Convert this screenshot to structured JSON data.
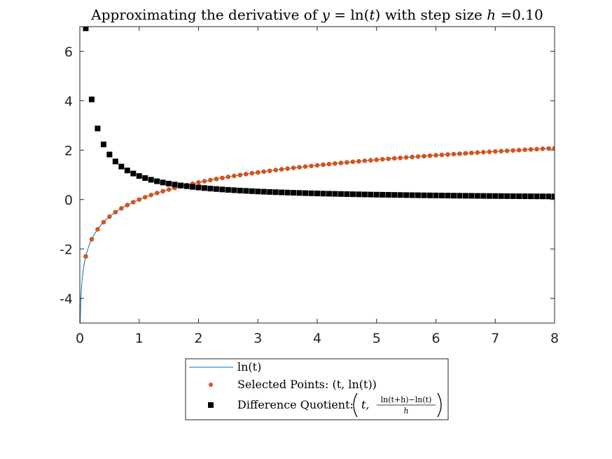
{
  "chart_data": {
    "type": "scatter",
    "title": "Approximating the derivative of y = ln(t) with step size h =0.10",
    "xlabel": "",
    "ylabel": "",
    "xlim": [
      0,
      8
    ],
    "ylim": [
      -5,
      7
    ],
    "x_ticks": [
      0,
      1,
      2,
      3,
      4,
      5,
      6,
      7,
      8
    ],
    "y_ticks": [
      -4,
      -2,
      0,
      2,
      4,
      6
    ],
    "x_tick_labels": [
      "0",
      "1",
      "2",
      "3",
      "4",
      "5",
      "6",
      "7",
      "8"
    ],
    "y_tick_labels": [
      "-4",
      "-2",
      "0",
      "2",
      "4",
      "6"
    ],
    "grid": false,
    "legend_position": "bottom-outside",
    "h": 0.1,
    "t_start": 0.1,
    "t_end": 8.0,
    "series": [
      {
        "name": "ln(t)",
        "kind": "line",
        "color": "#0072BD",
        "function": "ln(t)"
      },
      {
        "name": "Selected Points: (t, ln(t))",
        "kind": "points",
        "marker": "circle",
        "color": "#D95319",
        "function": "ln(t)"
      },
      {
        "name": "Difference Quotient: (t, (ln(t+h)−ln(t))/h)",
        "kind": "points",
        "marker": "square",
        "color": "#000000",
        "function": "(ln(t+h)-ln(t))/h"
      }
    ]
  },
  "title": {
    "prefix": "Approximating the derivative of ",
    "math_lhs": "y",
    "equals": " = ",
    "math_ln": "ln(",
    "math_var": "t",
    "math_close": ")",
    "middle": " with step size ",
    "math_h": "h",
    "suffix": " =0.10"
  },
  "legend": {
    "line_label": "ln(t)",
    "points_label_text": "Selected Points: ",
    "points_label_math": "(t, ln(t))",
    "dq_label_text": "Difference Quotient: ",
    "dq_t": "t,",
    "dq_numerator": "ln(t+h)−ln(t)",
    "dq_denominator": "h"
  }
}
